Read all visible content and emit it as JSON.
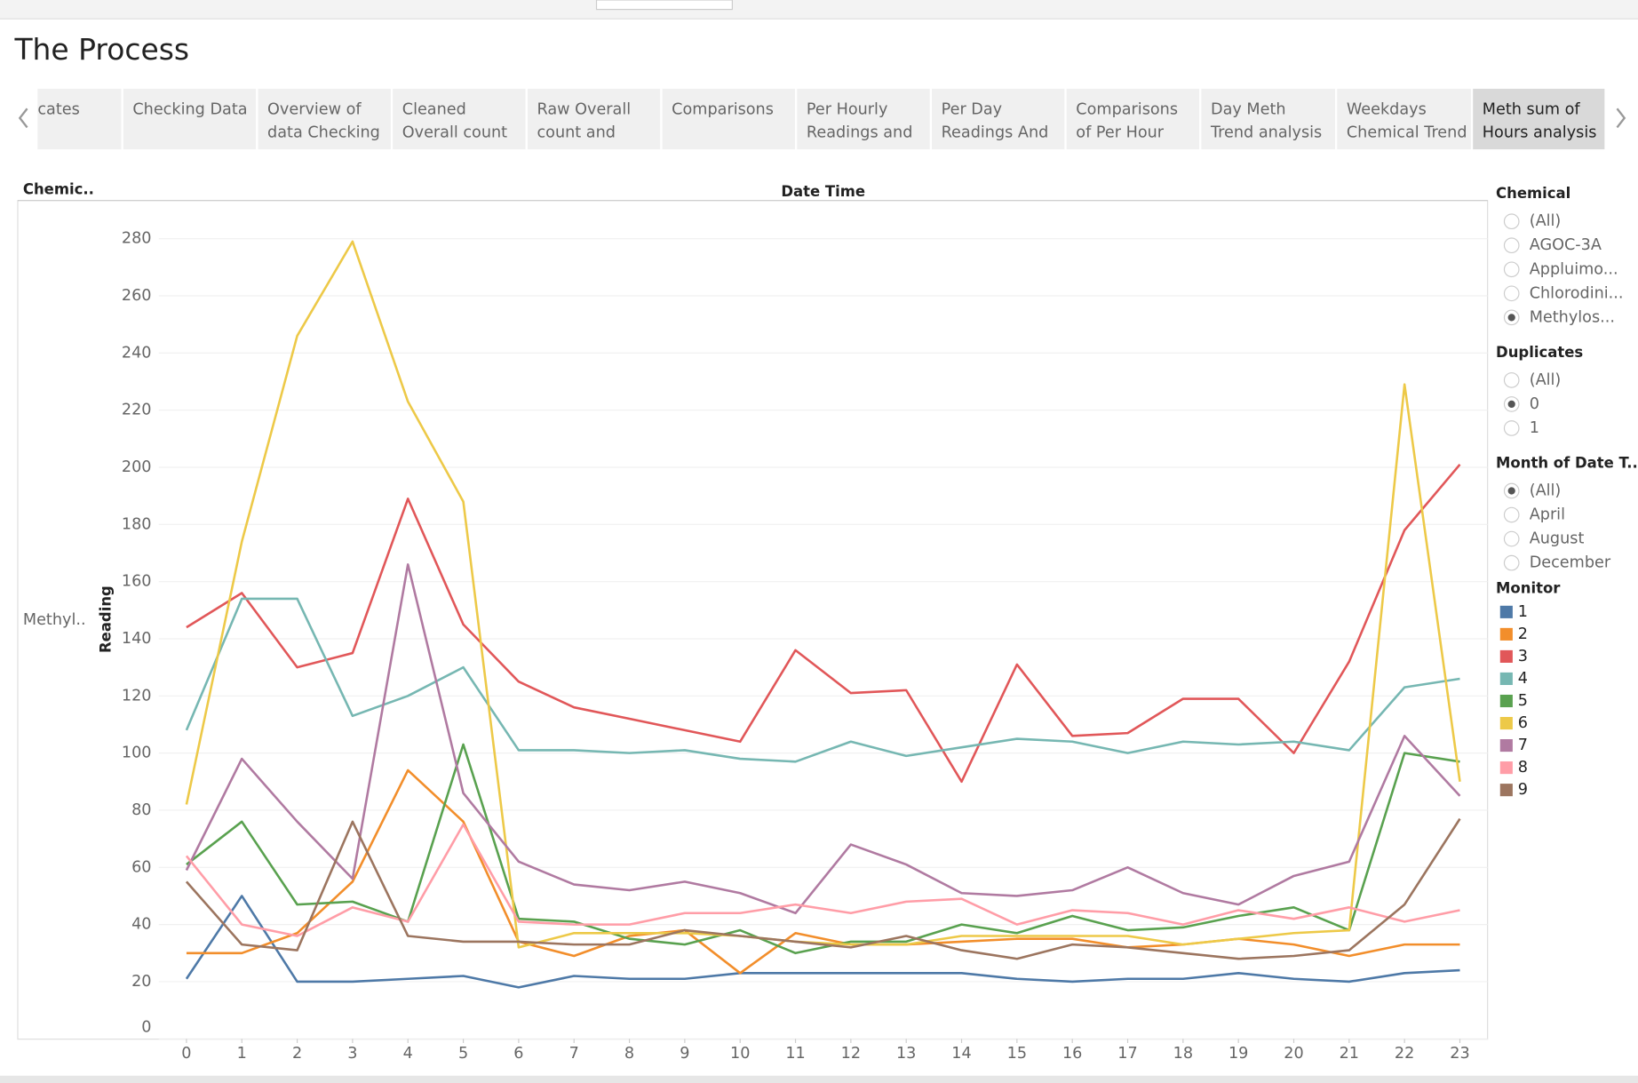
{
  "header": {
    "title": "The Process"
  },
  "tabs": [
    [
      "cates"
    ],
    [
      "Checking Data"
    ],
    [
      "Overview of",
      "data Checking"
    ],
    [
      "Cleaned",
      "Overall count"
    ],
    [
      "Raw Overall",
      "count and"
    ],
    [
      "Comparisons"
    ],
    [
      "Per Hourly",
      "Readings and"
    ],
    [
      "Per Day",
      "Readings And"
    ],
    [
      "Comparisons",
      "of Per Hour"
    ],
    [
      "Day Meth",
      "Trend analysis"
    ],
    [
      "Weekdays",
      "Chemical Trend"
    ],
    [
      "Meth sum of",
      "Hours analysis"
    ]
  ],
  "active_tab": 11,
  "chart_data": {
    "type": "line",
    "row_header": "Chemic..",
    "column_header": "Date Time",
    "row_label": "Methyl..",
    "y_label": "Reading",
    "x": [
      0,
      1,
      2,
      3,
      4,
      5,
      6,
      7,
      8,
      9,
      10,
      11,
      12,
      13,
      14,
      15,
      16,
      17,
      18,
      19,
      20,
      21,
      22,
      23
    ],
    "xlim": [
      -0.5,
      23.5
    ],
    "xticks": [
      0,
      1,
      2,
      3,
      4,
      5,
      6,
      7,
      8,
      9,
      10,
      11,
      12,
      13,
      14,
      15,
      16,
      17,
      18,
      19,
      20,
      21,
      22,
      23
    ],
    "ylim": [
      0,
      293
    ],
    "yticks": [
      0,
      20,
      40,
      60,
      80,
      100,
      120,
      140,
      160,
      180,
      200,
      220,
      240,
      260,
      280
    ],
    "grid": true,
    "legend_title": "Monitor",
    "series": [
      {
        "name": "1",
        "color": "#4e79a7",
        "values": [
          21,
          50,
          20,
          20,
          21,
          22,
          18,
          22,
          21,
          21,
          23,
          23,
          23,
          23,
          23,
          21,
          20,
          21,
          21,
          23,
          21,
          20,
          23,
          24
        ]
      },
      {
        "name": "2",
        "color": "#f28e2b",
        "values": [
          30,
          30,
          37,
          55,
          94,
          76,
          34,
          29,
          36,
          38,
          23,
          37,
          33,
          33,
          34,
          35,
          35,
          32,
          33,
          35,
          33,
          29,
          33,
          33
        ]
      },
      {
        "name": "3",
        "color": "#e15759",
        "values": [
          144,
          156,
          130,
          135,
          189,
          145,
          125,
          116,
          112,
          108,
          104,
          136,
          121,
          122,
          90,
          131,
          106,
          107,
          119,
          119,
          100,
          132,
          178,
          201
        ]
      },
      {
        "name": "4",
        "color": "#76b7b2",
        "values": [
          108,
          154,
          154,
          113,
          120,
          130,
          101,
          101,
          100,
          101,
          98,
          97,
          104,
          99,
          102,
          105,
          104,
          100,
          104,
          103,
          104,
          101,
          123,
          126
        ]
      },
      {
        "name": "5",
        "color": "#59a14f",
        "values": [
          61,
          76,
          47,
          48,
          41,
          103,
          42,
          41,
          35,
          33,
          38,
          30,
          34,
          34,
          40,
          37,
          43,
          38,
          39,
          43,
          46,
          38,
          100,
          97
        ]
      },
      {
        "name": "6",
        "color": "#edc948",
        "values": [
          82,
          174,
          246,
          279,
          223,
          188,
          32,
          37,
          37,
          37,
          36,
          34,
          33,
          33,
          36,
          36,
          36,
          36,
          33,
          35,
          37,
          38,
          229,
          90
        ]
      },
      {
        "name": "7",
        "color": "#b07aa1",
        "values": [
          59,
          98,
          76,
          56,
          166,
          86,
          62,
          54,
          52,
          55,
          51,
          44,
          68,
          61,
          51,
          50,
          52,
          60,
          51,
          47,
          57,
          62,
          106,
          85
        ]
      },
      {
        "name": "8",
        "color": "#ff9da7",
        "values": [
          64,
          40,
          36,
          46,
          41,
          75,
          41,
          40,
          40,
          44,
          44,
          47,
          44,
          48,
          49,
          40,
          45,
          44,
          40,
          45,
          42,
          46,
          41,
          45
        ]
      },
      {
        "name": "9",
        "color": "#9c755f",
        "values": [
          55,
          33,
          31,
          76,
          36,
          34,
          34,
          33,
          33,
          38,
          36,
          34,
          32,
          36,
          31,
          28,
          33,
          32,
          30,
          28,
          29,
          31,
          47,
          77
        ]
      }
    ]
  },
  "filters": [
    {
      "title": "Chemical",
      "options": [
        "(All)",
        "AGOC-3A",
        "Appluimo...",
        "Chlorodini...",
        "Methylos..."
      ],
      "selected": 4
    },
    {
      "title": "Duplicates",
      "options": [
        "(All)",
        "0",
        "1"
      ],
      "selected": 1
    },
    {
      "title": "Month of Date T..",
      "options": [
        "(All)",
        "April",
        "August",
        "December"
      ],
      "selected": 0
    }
  ]
}
